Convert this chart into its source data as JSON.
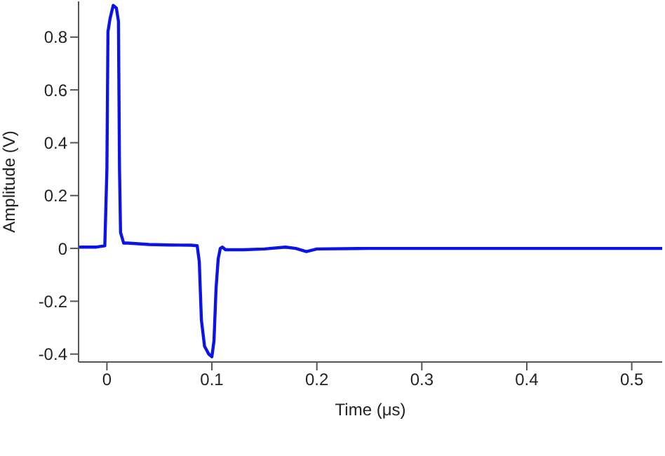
{
  "chart_data": {
    "type": "line",
    "xlabel": "Time (μs)",
    "ylabel": "Amplitude (V)",
    "x": [
      -0.027,
      -0.01,
      -0.002,
      0.0,
      0.001,
      0.003,
      0.006,
      0.009,
      0.011,
      0.012,
      0.013,
      0.016,
      0.02,
      0.04,
      0.06,
      0.08,
      0.086,
      0.088,
      0.09,
      0.093,
      0.097,
      0.1,
      0.102,
      0.104,
      0.106,
      0.108,
      0.11,
      0.113,
      0.13,
      0.15,
      0.17,
      0.18,
      0.19,
      0.2,
      0.25,
      0.3,
      0.35,
      0.4,
      0.45,
      0.5,
      0.529
    ],
    "series": [
      {
        "color": "#0a14e6",
        "values": [
          0.005,
          0.005,
          0.01,
          0.3,
          0.82,
          0.87,
          0.92,
          0.91,
          0.86,
          0.3,
          0.06,
          0.02,
          0.02,
          0.015,
          0.013,
          0.012,
          0.01,
          -0.05,
          -0.27,
          -0.37,
          -0.4,
          -0.41,
          -0.35,
          -0.15,
          -0.04,
          0.0,
          0.005,
          -0.005,
          -0.005,
          -0.002,
          0.005,
          0.0,
          -0.012,
          -0.002,
          0.0,
          0.0,
          0.0,
          0.0,
          0.0,
          0.0,
          0.0
        ]
      }
    ],
    "xlim": [
      -0.027,
      0.529
    ],
    "xticks": [
      0,
      0.1,
      0.2,
      0.3,
      0.4,
      0.5
    ],
    "ylim": [
      -0.43,
      0.935
    ],
    "yticks": [
      -0.4,
      -0.2,
      0,
      0.2,
      0.4,
      0.6,
      0.8
    ],
    "grid": false,
    "marker": "none",
    "line_style": "solid"
  }
}
